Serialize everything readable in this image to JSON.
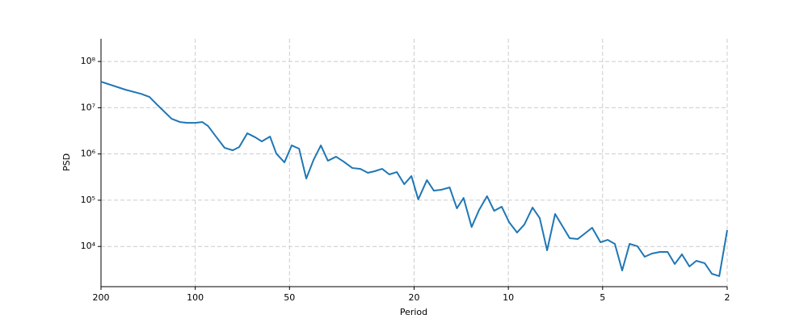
{
  "chart_data": {
    "type": "line",
    "xlabel": "Period",
    "ylabel": "PSD",
    "xscale": "log",
    "yscale": "log",
    "grid": true,
    "xlim": [
      200,
      2
    ],
    "xticks": [
      200,
      100,
      50,
      20,
      10,
      5,
      2
    ],
    "ylim": [
      1350,
      310000000
    ],
    "yticks": [
      {
        "value": 10000,
        "label": "10⁴"
      },
      {
        "value": 100000,
        "label": "10⁵"
      },
      {
        "value": 1000000,
        "label": "10⁶"
      },
      {
        "value": 10000000,
        "label": "10⁷"
      },
      {
        "value": 100000000,
        "label": "10⁸"
      }
    ],
    "series": [
      {
        "color": "#1f77b4",
        "x": [
          200,
          167,
          149,
          140,
          132,
          119,
          112,
          106,
          100,
          95,
          91,
          85.5,
          80.6,
          75.9,
          72.4,
          68.2,
          64.3,
          61.3,
          57.7,
          55.1,
          51.9,
          49.2,
          46.6,
          44.2,
          41.9,
          39.7,
          37.7,
          35.5,
          33.6,
          31.5,
          29.7,
          28.1,
          26.7,
          25.3,
          24.0,
          22.7,
          21.5,
          20.4,
          19.4,
          18.2,
          17.3,
          16.4,
          15.4,
          14.6,
          13.9,
          13.1,
          12.4,
          11.7,
          11.1,
          10.5,
          9.95,
          9.38,
          8.89,
          8.37,
          7.94,
          7.52,
          7.09,
          6.72,
          6.37,
          6.0,
          5.69,
          5.4,
          5.08,
          4.82,
          4.57,
          4.33,
          4.1,
          3.87,
          3.67,
          3.48,
          3.28,
          3.1,
          2.94,
          2.79,
          2.64,
          2.51,
          2.36,
          2.24,
          2.12,
          2.0
        ],
        "values": [
          36600000,
          24500000,
          20000000,
          17100000,
          11400000,
          5770000,
          4910000,
          4720000,
          4720000,
          4910000,
          4020000,
          2290000,
          1360000,
          1200000,
          1410000,
          2800000,
          2290000,
          1870000,
          2380000,
          1020000,
          658000,
          1530000,
          1300000,
          294000,
          743000,
          1530000,
          713000,
          873000,
          685000,
          497000,
          477000,
          391000,
          424000,
          477000,
          361000,
          406000,
          222000,
          333000,
          104000,
          272000,
          161000,
          168000,
          189000,
          66700,
          112000,
          26400,
          61500,
          122000,
          59000,
          72200,
          33700,
          20000,
          29800,
          69300,
          41100,
          8250,
          50300,
          27500,
          15100,
          14500,
          19200,
          25400,
          12300,
          13900,
          11400,
          3020,
          11400,
          10100,
          5980,
          7020,
          7600,
          7600,
          4170,
          6750,
          3690,
          4890,
          4340,
          2570,
          2280,
          22500
        ]
      }
    ]
  }
}
